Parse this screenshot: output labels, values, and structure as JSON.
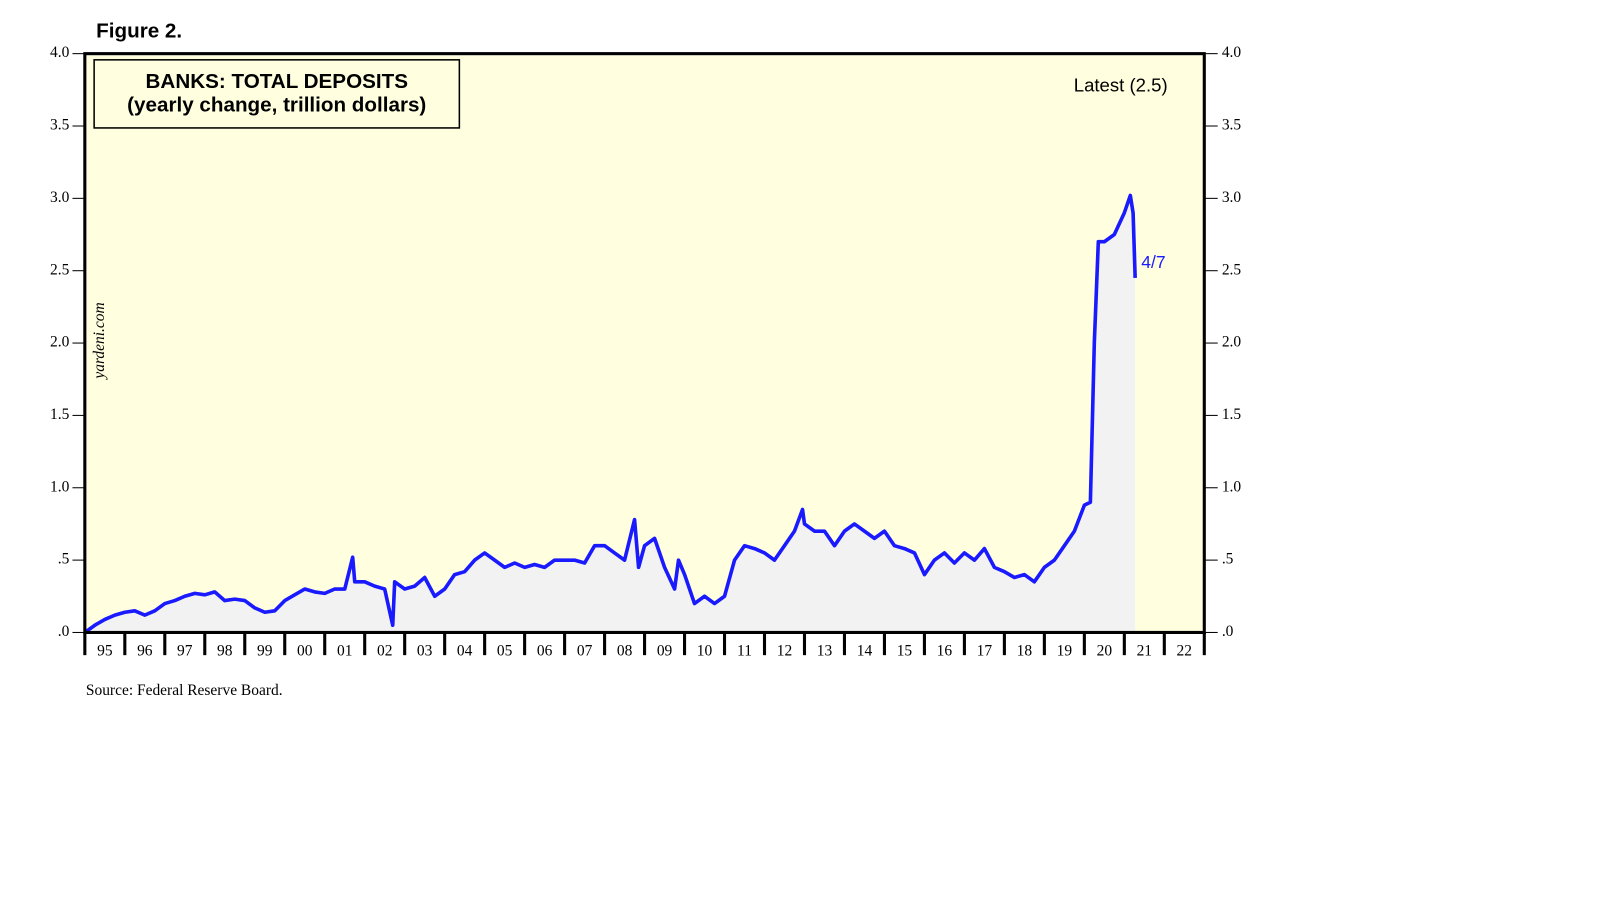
{
  "chart_data": {
    "type": "line",
    "figure_label": "Figure 2.",
    "title": "BANKS: TOTAL DEPOSITS",
    "subtitle": "(yearly change, trillion dollars)",
    "annotation": "Latest (2.5)",
    "end_label": "4/7",
    "watermark": "yardeni.com",
    "source": "Source: Federal Reserve Board.",
    "series": [
      {
        "name": "Total deposits, yearly change",
        "color": "#1a1aff",
        "fill": "#f2f2f2",
        "x": [
          1995,
          1995.25,
          1995.5,
          1995.75,
          1996,
          1996.25,
          1996.5,
          1996.75,
          1997,
          1997.25,
          1997.5,
          1997.75,
          1998,
          1998.25,
          1998.5,
          1998.75,
          1999,
          1999.25,
          1999.5,
          1999.75,
          2000,
          2000.25,
          2000.5,
          2000.75,
          2001,
          2001.25,
          2001.5,
          2001.7,
          2001.75,
          2002,
          2002.25,
          2002.5,
          2002.7,
          2002.75,
          2003,
          2003.25,
          2003.5,
          2003.75,
          2004,
          2004.25,
          2004.5,
          2004.75,
          2005,
          2005.25,
          2005.5,
          2005.75,
          2006,
          2006.25,
          2006.5,
          2006.75,
          2007,
          2007.25,
          2007.5,
          2007.75,
          2008,
          2008.25,
          2008.5,
          2008.75,
          2008.85,
          2009,
          2009.25,
          2009.5,
          2009.75,
          2009.85,
          2010,
          2010.25,
          2010.5,
          2010.75,
          2011,
          2011.25,
          2011.5,
          2011.75,
          2012,
          2012.25,
          2012.5,
          2012.75,
          2012.95,
          2013,
          2013.25,
          2013.5,
          2013.75,
          2014,
          2014.25,
          2014.5,
          2014.75,
          2015,
          2015.25,
          2015.5,
          2015.75,
          2016,
          2016.25,
          2016.5,
          2016.75,
          2017,
          2017.25,
          2017.5,
          2017.75,
          2018,
          2018.25,
          2018.5,
          2018.75,
          2019,
          2019.25,
          2019.5,
          2019.75,
          2020,
          2020.15,
          2020.25,
          2020.35,
          2020.5,
          2020.75,
          2021,
          2021.15,
          2021.22,
          2021.27
        ],
        "values": [
          0,
          0.05,
          0.09,
          0.12,
          0.14,
          0.15,
          0.12,
          0.15,
          0.2,
          0.22,
          0.25,
          0.27,
          0.26,
          0.28,
          0.22,
          0.23,
          0.22,
          0.17,
          0.14,
          0.15,
          0.22,
          0.26,
          0.3,
          0.28,
          0.27,
          0.3,
          0.3,
          0.52,
          0.35,
          0.35,
          0.32,
          0.3,
          0.05,
          0.35,
          0.3,
          0.32,
          0.38,
          0.25,
          0.3,
          0.4,
          0.42,
          0.5,
          0.55,
          0.5,
          0.45,
          0.48,
          0.45,
          0.47,
          0.45,
          0.5,
          0.5,
          0.5,
          0.48,
          0.6,
          0.6,
          0.55,
          0.5,
          0.78,
          0.45,
          0.6,
          0.65,
          0.45,
          0.3,
          0.5,
          0.4,
          0.2,
          0.25,
          0.2,
          0.25,
          0.5,
          0.6,
          0.58,
          0.55,
          0.5,
          0.6,
          0.7,
          0.85,
          0.75,
          0.7,
          0.7,
          0.6,
          0.7,
          0.75,
          0.7,
          0.65,
          0.7,
          0.6,
          0.58,
          0.55,
          0.4,
          0.5,
          0.55,
          0.48,
          0.55,
          0.5,
          0.58,
          0.45,
          0.42,
          0.38,
          0.4,
          0.35,
          0.45,
          0.5,
          0.6,
          0.7,
          0.88,
          0.9,
          2.0,
          2.7,
          2.7,
          2.75,
          2.9,
          3.02,
          2.9,
          2.45
        ]
      }
    ],
    "xlim": [
      1995,
      2023
    ],
    "xticks": [
      1995,
      1996,
      1997,
      1998,
      1999,
      2000,
      2001,
      2002,
      2003,
      2004,
      2005,
      2006,
      2007,
      2008,
      2009,
      2010,
      2011,
      2012,
      2013,
      2014,
      2015,
      2016,
      2017,
      2018,
      2019,
      2020,
      2021,
      2022,
      2023
    ],
    "xtick_labels": [
      {
        "value": 1995.5,
        "label": "95"
      },
      {
        "value": 1996.5,
        "label": "96"
      },
      {
        "value": 1997.5,
        "label": "97"
      },
      {
        "value": 1998.5,
        "label": "98"
      },
      {
        "value": 1999.5,
        "label": "99"
      },
      {
        "value": 2000.5,
        "label": "00"
      },
      {
        "value": 2001.5,
        "label": "01"
      },
      {
        "value": 2002.5,
        "label": "02"
      },
      {
        "value": 2003.5,
        "label": "03"
      },
      {
        "value": 2004.5,
        "label": "04"
      },
      {
        "value": 2005.5,
        "label": "05"
      },
      {
        "value": 2006.5,
        "label": "06"
      },
      {
        "value": 2007.5,
        "label": "07"
      },
      {
        "value": 2008.5,
        "label": "08"
      },
      {
        "value": 2009.5,
        "label": "09"
      },
      {
        "value": 2010.5,
        "label": "10"
      },
      {
        "value": 2011.5,
        "label": "11"
      },
      {
        "value": 2012.5,
        "label": "12"
      },
      {
        "value": 2013.5,
        "label": "13"
      },
      {
        "value": 2014.5,
        "label": "14"
      },
      {
        "value": 2015.5,
        "label": "15"
      },
      {
        "value": 2016.5,
        "label": "16"
      },
      {
        "value": 2017.5,
        "label": "17"
      },
      {
        "value": 2018.5,
        "label": "18"
      },
      {
        "value": 2019.5,
        "label": "19"
      },
      {
        "value": 2020.5,
        "label": "20"
      },
      {
        "value": 2021.5,
        "label": "21"
      },
      {
        "value": 2022.5,
        "label": "22"
      }
    ],
    "ylim": [
      0,
      4
    ],
    "yticks": [
      {
        "value": 0,
        "label": ".0"
      },
      {
        "value": 0.5,
        "label": ".5"
      },
      {
        "value": 1,
        "label": "1.0"
      },
      {
        "value": 1.5,
        "label": "1.5"
      },
      {
        "value": 2,
        "label": "2.0"
      },
      {
        "value": 2.5,
        "label": "2.5"
      },
      {
        "value": 3,
        "label": "3.0"
      },
      {
        "value": 3.5,
        "label": "3.5"
      },
      {
        "value": 4,
        "label": "4.0"
      }
    ],
    "background": "#ffffe0"
  }
}
